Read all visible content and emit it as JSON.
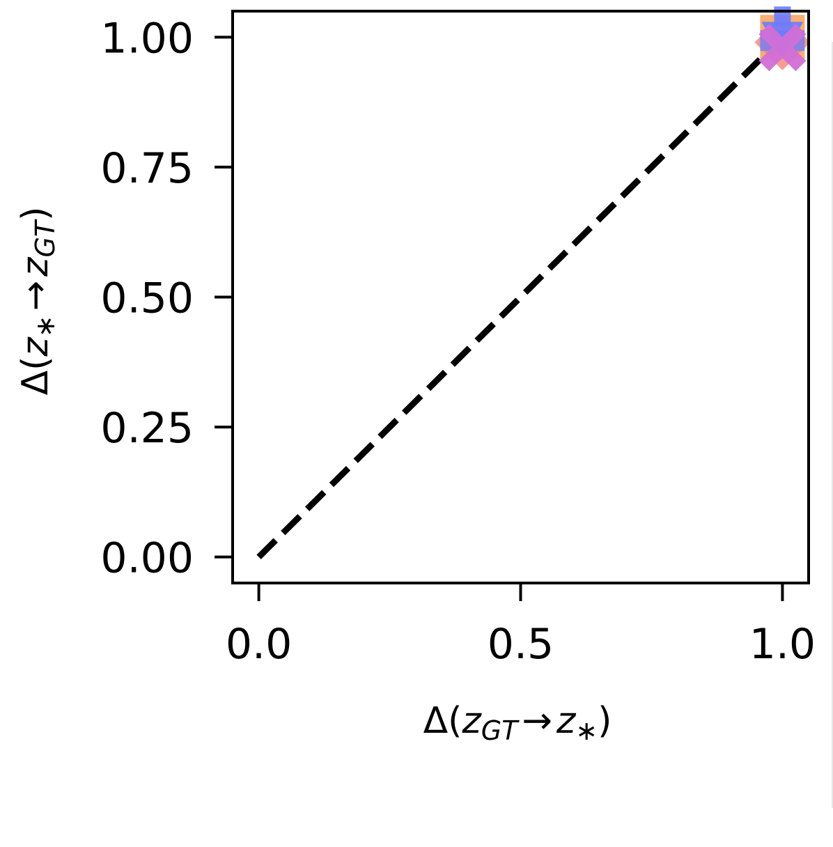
{
  "chart_data": {
    "type": "scatter",
    "xlim": [
      -0.05,
      1.05
    ],
    "ylim": [
      -0.05,
      1.05
    ],
    "x_ticks": [
      0.0,
      0.5,
      1.0
    ],
    "x_tick_labels": [
      "0.0",
      "0.5",
      "1.0"
    ],
    "y_ticks": [
      0.0,
      0.25,
      0.5,
      0.75,
      1.0
    ],
    "y_tick_labels": [
      "0.00",
      "0.25",
      "0.50",
      "0.75",
      "1.00"
    ],
    "xlabel": {
      "prefix": "Δ(",
      "var1": "z",
      "sub1": "GT",
      "arrow": "→",
      "var2": "z",
      "sub2": "∗",
      "suffix": ")"
    },
    "ylabel": {
      "prefix": "Δ(",
      "var1": "z",
      "sub1": "∗",
      "arrow": "→",
      "var2": "z",
      "sub2": "GT",
      "suffix": ")"
    },
    "grid": false,
    "reference_line": {
      "x": [
        0,
        1
      ],
      "y": [
        0,
        1
      ],
      "style": "dashed",
      "color": "#000000"
    },
    "series": [
      {
        "marker": "square",
        "color": "#f4a259",
        "x": [
          1.0
        ],
        "y": [
          1.0
        ]
      },
      {
        "marker": "diamond",
        "color": "#f28b82",
        "x": [
          1.0
        ],
        "y": [
          0.99
        ]
      },
      {
        "marker": "triangle-down",
        "color": "#6b7cff",
        "x": [
          1.0
        ],
        "y": [
          1.0
        ]
      },
      {
        "marker": "cross",
        "color": "#d16fd6",
        "x": [
          1.0
        ],
        "y": [
          0.98
        ]
      }
    ]
  }
}
